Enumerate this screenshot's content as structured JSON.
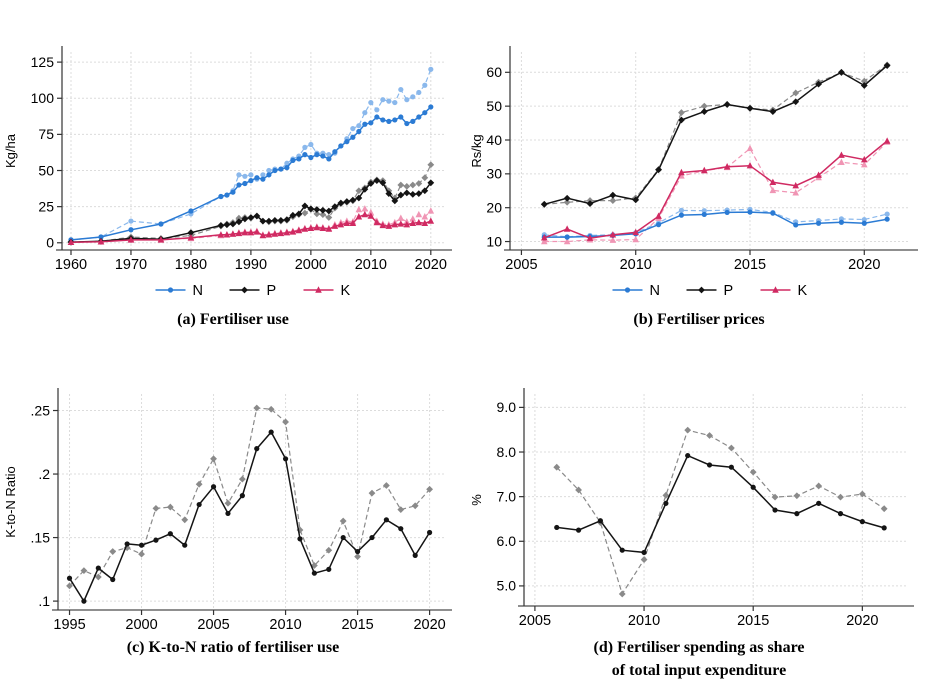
{
  "figure": {
    "background": "#ffffff",
    "captions": {
      "a": "(a)  Fertiliser use",
      "b": "(b)  Fertiliser prices",
      "c": "(c)  K-to-N ratio of fertiliser use",
      "d_line1": "(d)   Fertiliser spending as share",
      "d_line2": "of total input expenditure"
    },
    "colors": {
      "n_solid": "#2b7bd4",
      "n_dashed": "#8ab8ec",
      "p_solid": "#141414",
      "p_dashed": "#8a8a8a",
      "k_solid": "#d02a62",
      "k_dashed": "#f095b4",
      "grid": "#dcdcdc",
      "axis": "#333333",
      "axis_bottom": "#8f8f8f"
    }
  },
  "chart_data": [
    {
      "id": "a",
      "type": "line",
      "title": "(a) Fertiliser use",
      "ylabel": "Kg/ha",
      "xlim": [
        1958.5,
        2022.2
      ],
      "ylim": [
        -5,
        132
      ],
      "xticks": {
        "values": [
          1960,
          1970,
          1980,
          1990,
          2000,
          2010,
          2020
        ],
        "labels": [
          "1960",
          "1970",
          "1980",
          "1990",
          "2000",
          "2010",
          "2020"
        ]
      },
      "yticks": {
        "values": [
          0,
          25,
          50,
          75,
          100,
          125
        ],
        "labels": [
          "0",
          "25",
          "50",
          "75",
          "100",
          "125"
        ]
      },
      "legend": [
        {
          "label": "N",
          "color": "#2b7bd4",
          "marker": "circle"
        },
        {
          "label": "P",
          "color": "#141414",
          "marker": "diamond"
        },
        {
          "label": "K",
          "color": "#d02a62",
          "marker": "triangle"
        }
      ],
      "x": [
        1960,
        1965,
        1970,
        1975,
        1980,
        1985,
        1986,
        1987,
        1988,
        1989,
        1990,
        1991,
        1992,
        1993,
        1994,
        1995,
        1996,
        1997,
        1998,
        1999,
        2000,
        2001,
        2002,
        2003,
        2004,
        2005,
        2006,
        2007,
        2008,
        2009,
        2010,
        2011,
        2012,
        2013,
        2014,
        2015,
        2016,
        2017,
        2018,
        2019,
        2020
      ],
      "series": [
        {
          "name": "N dashed",
          "color": "#8ab8ec",
          "dash": true,
          "marker": "circle",
          "y": [
            2,
            4,
            15,
            13,
            20,
            32,
            33,
            36,
            47,
            46,
            47,
            44,
            47,
            50,
            51,
            51,
            55,
            58,
            60,
            66,
            68,
            62,
            62,
            61,
            62,
            67,
            72,
            79,
            81,
            90,
            97,
            92,
            99,
            98,
            97,
            106,
            99,
            101,
            104,
            109,
            120
          ]
        },
        {
          "name": "P dashed",
          "color": "#8a8a8a",
          "dash": true,
          "marker": "diamond",
          "y": [
            0.5,
            1,
            4,
            3,
            5,
            11.5,
            13,
            14,
            17,
            17.5,
            17,
            18.5,
            15,
            14.5,
            15,
            15,
            15.5,
            18,
            19.5,
            20.5,
            23,
            20,
            19.5,
            17.5,
            24,
            27,
            28,
            29,
            36,
            38,
            42,
            43.5,
            43,
            36,
            31,
            40,
            39,
            40,
            41,
            45,
            54
          ]
        },
        {
          "name": "K dashed",
          "color": "#f095b4",
          "dash": true,
          "marker": "triangle",
          "y": [
            0.3,
            0.7,
            2.5,
            2.5,
            3,
            5,
            5.5,
            6,
            7,
            7.5,
            7.5,
            8,
            5.5,
            6,
            6.5,
            7,
            7.5,
            8,
            9,
            10,
            10.5,
            11,
            10.5,
            10,
            12.5,
            14,
            15,
            14.5,
            23,
            23.5,
            21,
            15,
            13,
            12.5,
            14,
            17,
            14.5,
            16.5,
            19.5,
            18,
            22
          ]
        },
        {
          "name": "N",
          "color": "#2b7bd4",
          "dash": false,
          "marker": "circle",
          "y": [
            2,
            4,
            9,
            13,
            22,
            32,
            33,
            35,
            40,
            41,
            43,
            45,
            44,
            47,
            50,
            51,
            52,
            57,
            58,
            61,
            59,
            61,
            60,
            58,
            63,
            67,
            70,
            73,
            77,
            82,
            83,
            87,
            85,
            84,
            85,
            87,
            82.5,
            84,
            87,
            90,
            94
          ]
        },
        {
          "name": "P",
          "color": "#141414",
          "dash": false,
          "marker": "diamond",
          "y": [
            0.5,
            1,
            3,
            2.5,
            7,
            12,
            12.5,
            13,
            14.5,
            16.5,
            17.5,
            18.5,
            15,
            15,
            15.5,
            15.5,
            16,
            19,
            20,
            25.5,
            23.5,
            23,
            22.5,
            22,
            25,
            27.5,
            28.5,
            29.5,
            31,
            37,
            41,
            43,
            41.5,
            34,
            29,
            33,
            34.5,
            33.5,
            34,
            36,
            41.5
          ]
        },
        {
          "name": "K",
          "color": "#d02a62",
          "dash": false,
          "marker": "triangle",
          "y": [
            0.3,
            0.7,
            2,
            2,
            3.5,
            5.5,
            5.5,
            6,
            6.5,
            7,
            7,
            7.5,
            5,
            5.5,
            6,
            6.5,
            7,
            7.5,
            8.5,
            9.5,
            10,
            10.5,
            10,
            9.5,
            11.5,
            12.5,
            13.5,
            13.5,
            18,
            19.5,
            18.5,
            14,
            12,
            11.5,
            12.5,
            13,
            12.5,
            13.5,
            14,
            13.5,
            15
          ]
        }
      ]
    },
    {
      "id": "b",
      "type": "line",
      "title": "(b) Fertiliser prices",
      "ylabel": "Rs/kg",
      "xlim": [
        2004.5,
        2022.0
      ],
      "ylim": [
        7.5,
        66
      ],
      "xticks": {
        "values": [
          2005,
          2010,
          2015,
          2020
        ],
        "labels": [
          "2005",
          "2010",
          "2015",
          "2020"
        ]
      },
      "yticks": {
        "values": [
          10,
          20,
          30,
          40,
          50,
          60
        ],
        "labels": [
          "10",
          "20",
          "30",
          "40",
          "50",
          "60"
        ]
      },
      "legend": [
        {
          "label": "N",
          "color": "#2b7bd4",
          "marker": "circle"
        },
        {
          "label": "P",
          "color": "#141414",
          "marker": "diamond"
        },
        {
          "label": "K",
          "color": "#d02a62",
          "marker": "triangle"
        }
      ],
      "x": [
        2006,
        2007,
        2008,
        2009,
        2010,
        2011,
        2012,
        2013,
        2014,
        2015,
        2016,
        2017,
        2018,
        2019,
        2020,
        2021
      ],
      "series": [
        {
          "name": "N dashed",
          "color": "#8ab8ec",
          "dash": true,
          "marker": "circle",
          "y": [
            12.0,
            11.4,
            11.8,
            12.0,
            12.6,
            15.5,
            19.2,
            19.1,
            19.3,
            19.5,
            18.6,
            15.8,
            16.2,
            16.7,
            16.5,
            18.1
          ]
        },
        {
          "name": "P dashed",
          "color": "#8a8a8a",
          "dash": true,
          "marker": "diamond",
          "y": [
            21.0,
            21.6,
            22.1,
            22.1,
            22.9,
            31.3,
            48.1,
            50.0,
            50.5,
            49.3,
            48.9,
            53.9,
            57.1,
            59.9,
            57.4,
            62.2
          ]
        },
        {
          "name": "K dashed",
          "color": "#f095b4",
          "dash": true,
          "marker": "triangle",
          "y": [
            10.0,
            10.0,
            10.5,
            10.4,
            10.6,
            16.9,
            29.4,
            30.9,
            31.9,
            37.5,
            25.1,
            24.4,
            28.9,
            33.4,
            32.7,
            39.4
          ]
        },
        {
          "name": "N",
          "color": "#2b7bd4",
          "dash": false,
          "marker": "circle",
          "y": [
            11.3,
            11.3,
            11.5,
            11.8,
            12.3,
            15.0,
            17.8,
            18.0,
            18.6,
            18.7,
            18.4,
            14.9,
            15.4,
            15.7,
            15.4,
            16.6
          ]
        },
        {
          "name": "P",
          "color": "#141414",
          "dash": false,
          "marker": "diamond",
          "y": [
            21.0,
            22.8,
            21.2,
            23.7,
            22.3,
            31.2,
            45.9,
            48.4,
            50.5,
            49.4,
            48.4,
            51.3,
            56.5,
            60.0,
            56.1,
            62.0
          ]
        },
        {
          "name": "K",
          "color": "#d02a62",
          "dash": false,
          "marker": "triangle",
          "y": [
            11.1,
            13.7,
            11.0,
            12.0,
            12.7,
            17.5,
            30.4,
            31.0,
            32.1,
            32.4,
            27.5,
            26.5,
            29.6,
            35.5,
            34.2,
            39.7
          ]
        }
      ]
    },
    {
      "id": "c",
      "type": "line",
      "title": "(c) K-to-N ratio of fertiliser use",
      "ylabel": "K-to-N Ratio",
      "xlim": [
        1994.2,
        2021.0
      ],
      "ylim": [
        0.093,
        0.263
      ],
      "xticks": {
        "values": [
          1995,
          2000,
          2005,
          2010,
          2015,
          2020
        ],
        "labels": [
          "1995",
          "2000",
          "2005",
          "2010",
          "2015",
          "2020"
        ]
      },
      "yticks": {
        "values": [
          0.1,
          0.15,
          0.2,
          0.25
        ],
        "labels": [
          ".1",
          ".15",
          ".2",
          ".25"
        ]
      },
      "legend": null,
      "x": [
        1995,
        1996,
        1997,
        1998,
        1999,
        2000,
        2001,
        2002,
        2003,
        2004,
        2005,
        2006,
        2007,
        2008,
        2009,
        2010,
        2011,
        2012,
        2013,
        2014,
        2015,
        2016,
        2017,
        2018,
        2019,
        2020
      ],
      "series": [
        {
          "name": "dashed",
          "color": "#8a8a8a",
          "dash": true,
          "marker": "diamond",
          "y": [
            0.112,
            0.124,
            0.119,
            0.139,
            0.142,
            0.137,
            0.173,
            0.174,
            0.164,
            0.192,
            0.212,
            0.177,
            0.196,
            0.252,
            0.251,
            0.241,
            0.156,
            0.128,
            0.14,
            0.163,
            0.135,
            0.185,
            0.191,
            0.172,
            0.175,
            0.188
          ]
        },
        {
          "name": "solid",
          "color": "#141414",
          "dash": false,
          "marker": "circle",
          "y": [
            0.118,
            0.1,
            0.126,
            0.117,
            0.145,
            0.144,
            0.148,
            0.153,
            0.144,
            0.176,
            0.19,
            0.169,
            0.183,
            0.22,
            0.233,
            0.212,
            0.149,
            0.122,
            0.125,
            0.15,
            0.139,
            0.15,
            0.164,
            0.157,
            0.136,
            0.154
          ]
        }
      ]
    },
    {
      "id": "d",
      "type": "line",
      "title": "(d) Fertiliser spending as share of total input expenditure",
      "ylabel": "%",
      "xlim": [
        2004.5,
        2022.0
      ],
      "ylim": [
        4.55,
        9.3
      ],
      "xticks": {
        "values": [
          2005,
          2010,
          2015,
          2020
        ],
        "labels": [
          "2005",
          "2010",
          "2015",
          "2020"
        ]
      },
      "yticks": {
        "values": [
          5.0,
          6.0,
          7.0,
          8.0,
          9.0
        ],
        "labels": [
          "5.0",
          "6.0",
          "7.0",
          "8.0",
          "9.0"
        ]
      },
      "legend": null,
      "x": [
        2006,
        2007,
        2008,
        2009,
        2010,
        2011,
        2012,
        2013,
        2014,
        2015,
        2016,
        2017,
        2018,
        2019,
        2020,
        2021
      ],
      "series": [
        {
          "name": "dashed",
          "color": "#8a8a8a",
          "dash": true,
          "marker": "diamond",
          "y": [
            7.66,
            7.15,
            6.42,
            4.82,
            5.59,
            7.03,
            8.49,
            8.37,
            8.09,
            7.55,
            6.99,
            7.02,
            7.24,
            6.99,
            7.06,
            6.73
          ]
        },
        {
          "name": "solid",
          "color": "#141414",
          "dash": false,
          "marker": "circle",
          "y": [
            6.31,
            6.25,
            6.46,
            5.8,
            5.75,
            6.85,
            7.92,
            7.71,
            7.66,
            7.21,
            6.7,
            6.62,
            6.85,
            6.62,
            6.44,
            6.3
          ]
        }
      ]
    }
  ]
}
